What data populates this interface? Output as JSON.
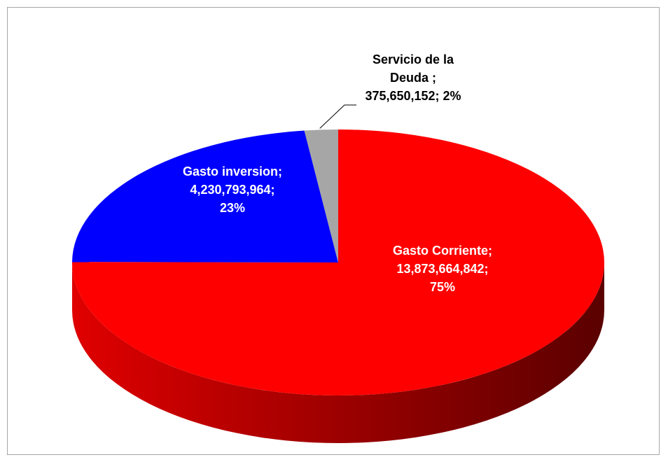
{
  "chart_data": {
    "type": "pie",
    "style": "3d",
    "title": "",
    "legend": "none",
    "slices": [
      {
        "name": "Gasto Corriente",
        "value": 13873664842,
        "percent": 75,
        "color": "#ff0000",
        "side_color_light": "#e00000",
        "side_color_dark": "#5a0000",
        "label_lines": [
          "Gasto Corriente;",
          "13,873,664,842;",
          "75%"
        ],
        "label_color": "#ffffff"
      },
      {
        "name": "Gasto inversion",
        "value": 4230793964,
        "percent": 23,
        "color": "#0000ff",
        "side_color_light": "#0000cc",
        "side_color_dark": "#000066",
        "label_lines": [
          "Gasto inversion;",
          "4,230,793,964;",
          "23%"
        ],
        "label_color": "#ffffff"
      },
      {
        "name": "Servicio de la Deuda",
        "value": 375650152,
        "percent": 2,
        "color": "#a6a6a6",
        "side_color_light": "#8c8c8c",
        "side_color_dark": "#595959",
        "label_lines": [
          "Servicio de la",
          "Deuda ;",
          "375,650,152; 2%"
        ],
        "label_color": "#000000"
      }
    ]
  }
}
